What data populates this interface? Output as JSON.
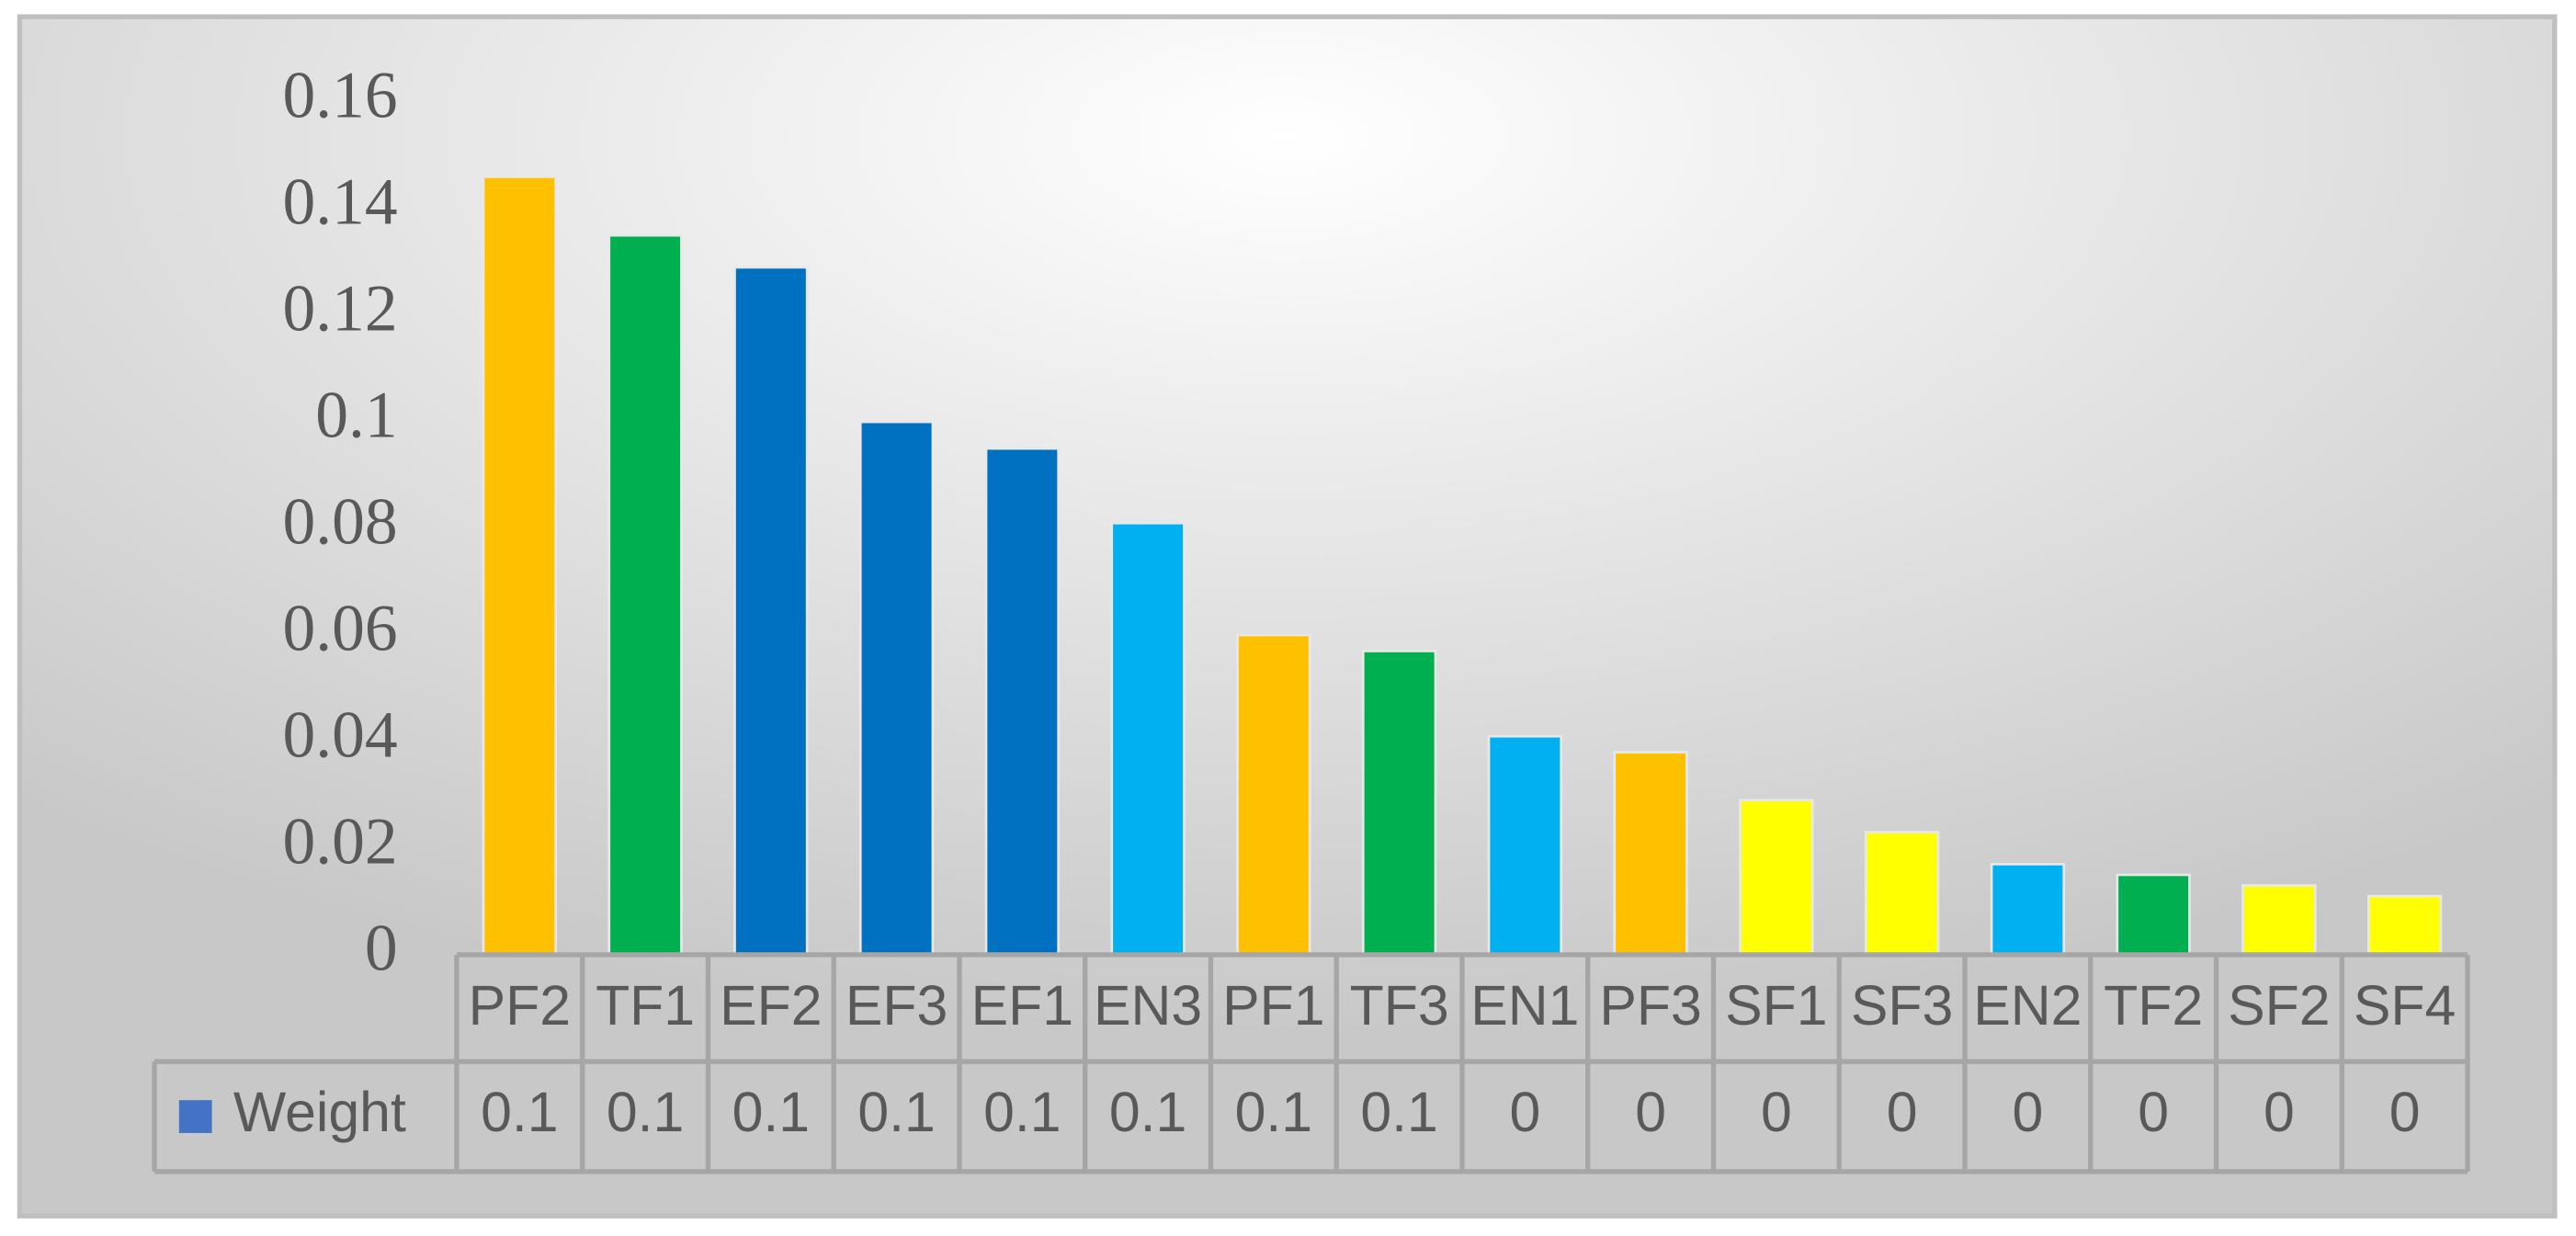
{
  "chart_data": {
    "type": "bar",
    "categories": [
      "PF2",
      "TF1",
      "EF2",
      "EF3",
      "EF1",
      "EN3",
      "PF1",
      "TF3",
      "EN1",
      "PF3",
      "SF1",
      "SF3",
      "EN2",
      "TF2",
      "SF2",
      "SF4"
    ],
    "series": [
      {
        "name": "Weight",
        "color": "#4472c4",
        "values": [
          0.146,
          0.135,
          0.129,
          0.1,
          0.095,
          0.081,
          0.06,
          0.057,
          0.041,
          0.038,
          0.029,
          0.023,
          0.017,
          0.015,
          0.013,
          0.011
        ],
        "value_labels": [
          "0.1",
          "0.1",
          "0.1",
          "0.1",
          "0.1",
          "0.1",
          "0.1",
          "0.1",
          "0",
          "0",
          "0",
          "0",
          "0",
          "0",
          "0",
          "0"
        ],
        "colors": [
          "#ffc000",
          "#00b050",
          "#0070c0",
          "#0070c0",
          "#0070c0",
          "#00b0f0",
          "#ffc000",
          "#00b050",
          "#00b0f0",
          "#ffc000",
          "#ffff00",
          "#ffff00",
          "#00b0f0",
          "#00b050",
          "#ffff00",
          "#ffff00"
        ]
      }
    ],
    "ylim": [
      0,
      0.16
    ],
    "yticks": [
      0,
      0.02,
      0.04,
      0.06,
      0.08,
      0.1,
      0.12,
      0.14,
      0.16
    ],
    "grid": false
  }
}
